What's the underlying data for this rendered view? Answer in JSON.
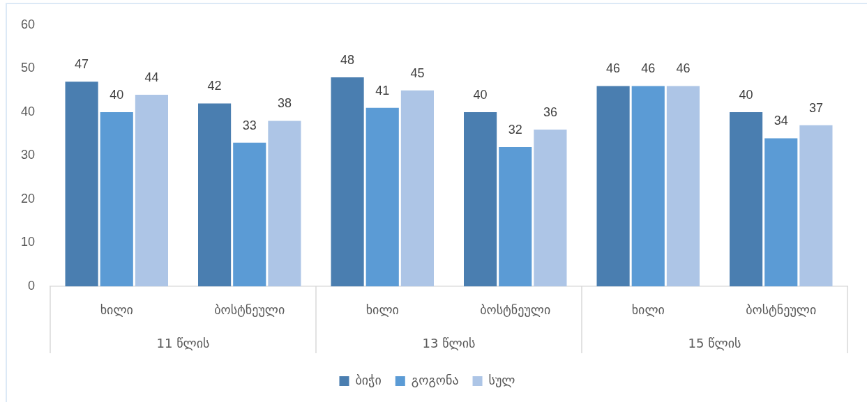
{
  "chart_data": {
    "type": "bar",
    "categories": [
      "ხილი",
      "ბოსტნეული",
      "ხილი",
      "ბოსტნეული",
      "ხილი",
      "ბოსტნეული"
    ],
    "annotations": [
      "11 წლის",
      "13 წლის",
      "15 წლის"
    ],
    "series": [
      {
        "name": "ბიჭი",
        "color": "#4a7eb0",
        "values": [
          47,
          42,
          48,
          40,
          46,
          40
        ]
      },
      {
        "name": "გოგონა",
        "color": "#5b9bd5",
        "values": [
          40,
          33,
          41,
          32,
          46,
          34
        ]
      },
      {
        "name": "სულ",
        "color": "#adc5e6",
        "values": [
          44,
          38,
          45,
          36,
          46,
          37
        ]
      }
    ],
    "ylim": [
      0,
      60
    ],
    "yticks": [
      0,
      10,
      20,
      30,
      40,
      50,
      60
    ],
    "grid": false,
    "legend": "bottom",
    "data_labels": true
  }
}
